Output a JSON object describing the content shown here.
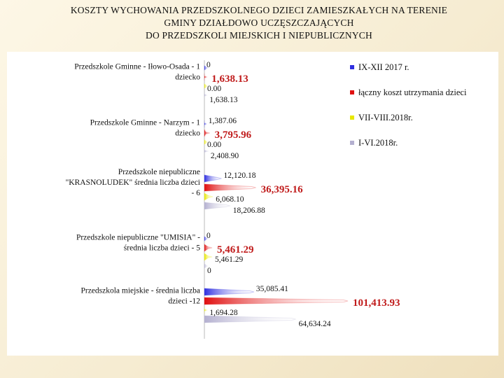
{
  "title": {
    "line1": "KOSZTY WYCHOWANIA PRZEDSZKOLNEGO DZIECI ZAMIESZKAŁYCH NA TERENIE",
    "line2": "GMINY DZIAŁDOWO UCZĘSZCZAJĄCYCH",
    "line3": "DO PRZEDSZKOLI MIEJSKICH I NIEPUBLICZNYCH"
  },
  "chart_data": {
    "type": "bar",
    "orientation": "horizontal",
    "title": "KOSZTY WYCHOWANIA PRZEDSZKOLNEGO DZIECI ZAMIESZKAŁYCH NA TERENIE GMINY DZIAŁDOWO UCZĘSZCZAJĄCYCH DO PRZEDSZKOLI MIEJSKICH I NIEPUBLICZNYCH",
    "categories": [
      [
        "Przedszkole Gminne - Iłowo-Osada - 1",
        "dziecko"
      ],
      [
        "Przedszkole Gminne - Narzym - 1",
        "dziecko"
      ],
      [
        "Przedszkole niepubliczne",
        "\"KRASNOLUDEK\" średnia liczba dzieci",
        "- 6"
      ],
      [
        "Przedszkole niepubliczne \"UMISIA\" -",
        "średnia liczba dzieci - 5"
      ],
      [
        "Przedszkola miejskie - średnia liczba",
        "dzieci -12"
      ]
    ],
    "series": [
      {
        "name": "IX-XII 2017 r.",
        "color": "#2f2fe0",
        "values": [
          0,
          1387.06,
          12120.18,
          0,
          35085.41
        ],
        "labels": [
          "0",
          "1,387.06",
          "12,120.18",
          "0",
          "35,085.41"
        ]
      },
      {
        "name": "łączny koszt utrzymania dzieci",
        "color": "#e01010",
        "values": [
          1638.13,
          3795.96,
          36395.16,
          5461.29,
          101413.93
        ],
        "labels": [
          "1,638.13",
          "3,795.96",
          "36,395.16",
          "5,461.29",
          "101,413.93"
        ]
      },
      {
        "name": "VII-VIII.2018r.",
        "color": "#e8e800",
        "values": [
          0,
          0,
          6068.1,
          5461.29,
          1694.28
        ],
        "labels": [
          "0.00",
          "0.00",
          "6,068.10",
          "5,461.29",
          "1,694.28"
        ]
      },
      {
        "name": "I-VI.2018r.",
        "color": "#b4b0d0",
        "values": [
          1638.13,
          2408.9,
          18206.88,
          0,
          64634.24
        ],
        "labels": [
          "1,638.13",
          "2,408.90",
          "18,206.88",
          "0",
          "64,634.24"
        ]
      }
    ],
    "legend_position": "right",
    "grid": false
  }
}
